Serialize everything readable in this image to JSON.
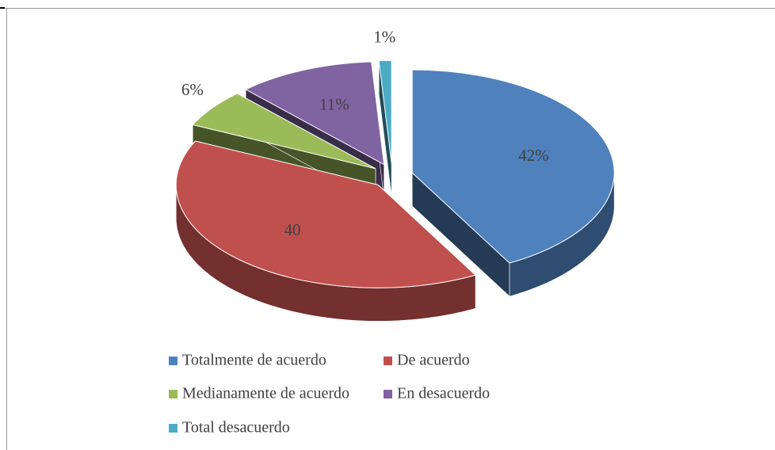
{
  "chart_data": {
    "type": "pie",
    "categories": [
      "Totalmente de acuerdo",
      "De acuerdo",
      "Medianamente de acuerdo",
      "En desacuerdo",
      "Total desacuerdo"
    ],
    "values": [
      42,
      40,
      6,
      11,
      1
    ],
    "value_labels": [
      "42%",
      "40",
      "6%",
      "11%",
      "1%"
    ],
    "colors": [
      "#4f81bd",
      "#c0504d",
      "#9bbb59",
      "#8064a2",
      "#4bacc6"
    ],
    "legend": "bottom"
  }
}
